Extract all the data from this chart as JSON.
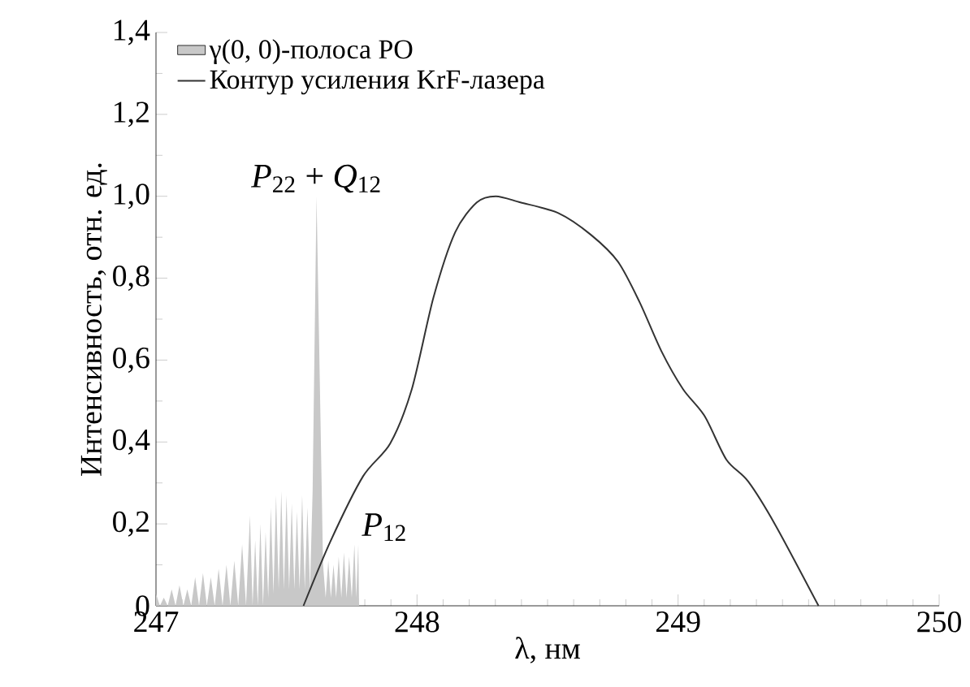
{
  "chart_data": {
    "type": "line",
    "xlabel": "λ, нм",
    "ylabel": "Интенсивность, отн. ед.",
    "xlim": [
      247,
      250
    ],
    "ylim": [
      0,
      1.4
    ],
    "xticks": [
      247,
      248,
      249,
      250
    ],
    "yticks": [
      0,
      {
        "value": 0.2,
        "label": "0,2"
      },
      {
        "value": 0.4,
        "label": "0,4"
      },
      {
        "value": 0.6,
        "label": "0,6"
      },
      {
        "value": 0.8,
        "label": "0,8"
      },
      {
        "value": 1.0,
        "label": "1,0"
      },
      {
        "value": 1.2,
        "label": "1,2"
      },
      {
        "value": 1.4,
        "label": "1,4"
      }
    ],
    "legend": "top left",
    "marker": "none",
    "line_style": "solid",
    "series": [
      {
        "name": "γ(0, 0)-полоса PO",
        "type": "area",
        "color": "#c8c8c8",
        "x": [
          247.0,
          247.015,
          247.03,
          247.045,
          247.06,
          247.075,
          247.09,
          247.105,
          247.12,
          247.135,
          247.15,
          247.165,
          247.18,
          247.195,
          247.21,
          247.225,
          247.24,
          247.255,
          247.27,
          247.285,
          247.3,
          247.315,
          247.33,
          247.345,
          247.36,
          247.37,
          247.38,
          247.39,
          247.4,
          247.41,
          247.42,
          247.43,
          247.44,
          247.45,
          247.46,
          247.47,
          247.48,
          247.49,
          247.5,
          247.51,
          247.52,
          247.53,
          247.54,
          247.55,
          247.56,
          247.57,
          247.58,
          247.59,
          247.6,
          247.615,
          247.64,
          247.65,
          247.66,
          247.67,
          247.68,
          247.69,
          247.7,
          247.71,
          247.72,
          247.73,
          247.74,
          247.75,
          247.76,
          247.767,
          247.775,
          247.778
        ],
        "values": [
          0.03,
          0,
          0.02,
          0,
          0.04,
          0,
          0.05,
          0,
          0.04,
          0,
          0.07,
          0,
          0.08,
          0,
          0.07,
          0,
          0.09,
          0,
          0.1,
          0,
          0.11,
          0,
          0.15,
          0,
          0.22,
          0,
          0.16,
          0,
          0.2,
          0,
          0.18,
          0.02,
          0.24,
          0.03,
          0.27,
          0.04,
          0.28,
          0.04,
          0.27,
          0.04,
          0.25,
          0.04,
          0.23,
          0.04,
          0.27,
          0.04,
          0.24,
          0.04,
          0.28,
          1.0,
          0.1,
          0.02,
          0.11,
          0.02,
          0.1,
          0.02,
          0.12,
          0.02,
          0.13,
          0.02,
          0.12,
          0.02,
          0.15,
          0.02,
          0.15,
          0
        ]
      },
      {
        "name": "Контур усиления KrF-лазера",
        "color": "#333333",
        "x": [
          247.565,
          247.668,
          247.793,
          247.897,
          247.98,
          248.063,
          248.146,
          248.229,
          248.302,
          248.396,
          248.541,
          248.666,
          248.77,
          248.853,
          248.936,
          249.019,
          249.102,
          249.185,
          249.268,
          249.372,
          249.538
        ],
        "values": [
          0,
          0.157,
          0.316,
          0.396,
          0.529,
          0.753,
          0.912,
          0.985,
          1.0,
          0.985,
          0.959,
          0.906,
          0.84,
          0.741,
          0.622,
          0.529,
          0.463,
          0.357,
          0.304,
          0.198,
          0
        ]
      }
    ],
    "annotations": [
      {
        "text": "*P*$_{22}$ + *Q*$_{12}$",
        "x": 247.615,
        "y": 1.0
      },
      {
        "text": "*P*$_{12}$",
        "x": 247.775,
        "y": 0.15
      }
    ]
  }
}
